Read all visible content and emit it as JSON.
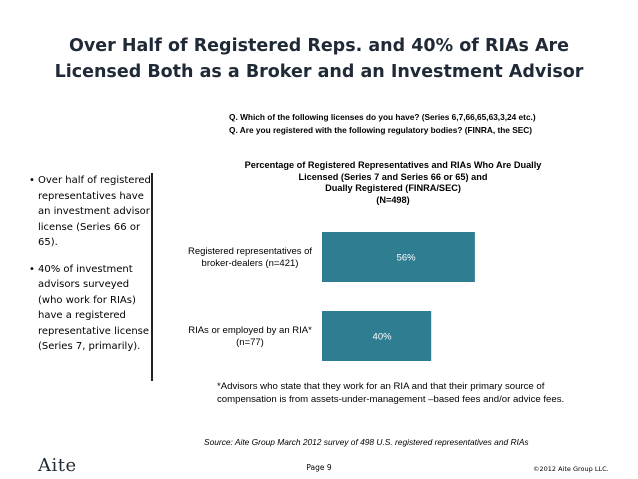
{
  "slide": {
    "title_line1": "Over Half of Registered Reps. and 40% of RIAs Are",
    "title_line2": "Licensed Both as a Broker and an Investment Advisor",
    "question1": "Q. Which of the following licenses do you have? (Series 6,7,66,65,63,3,24 etc.)",
    "question2": "Q. Are you registered with the following regulatory bodies? (FINRA, the SEC)",
    "bullets": [
      {
        "marker": "•",
        "text": "Over half of registered representatives have an investment advisor license (Series 66 or 65)."
      },
      {
        "marker": "•",
        "text": "40% of investment advisors surveyed (who work for RIAs) have a registered representative license (Series 7, primarily)."
      }
    ],
    "footnote": "*Advisors who state that they work for an RIA and that their primary source of compensation is from assets-under-management –based fees and/or advice fees.",
    "source": "Source: Aite Group March 2012 survey of 498 U.S. registered representatives and RIAs",
    "logo": "Aite",
    "page": "Page 9",
    "copyright": "©2012 Aite Group LLC."
  },
  "chart_data": {
    "type": "bar",
    "orientation": "horizontal",
    "title_lines": [
      "Percentage of Registered Representatives and RIAs Who Are Dually",
      "Licensed (Series 7 and Series 66 or 65) and",
      "Dually Registered (FINRA/SEC)",
      "(N=498)"
    ],
    "categories": [
      [
        "Registered representatives of",
        "broker-dealers (n=421)"
      ],
      [
        "RIAs or employed by an RIA*",
        "(n=77)"
      ]
    ],
    "values": [
      56,
      40
    ],
    "value_labels": [
      "56%",
      "40%"
    ],
    "xlim": [
      0,
      100
    ],
    "bar_color": "#2e7d91"
  }
}
